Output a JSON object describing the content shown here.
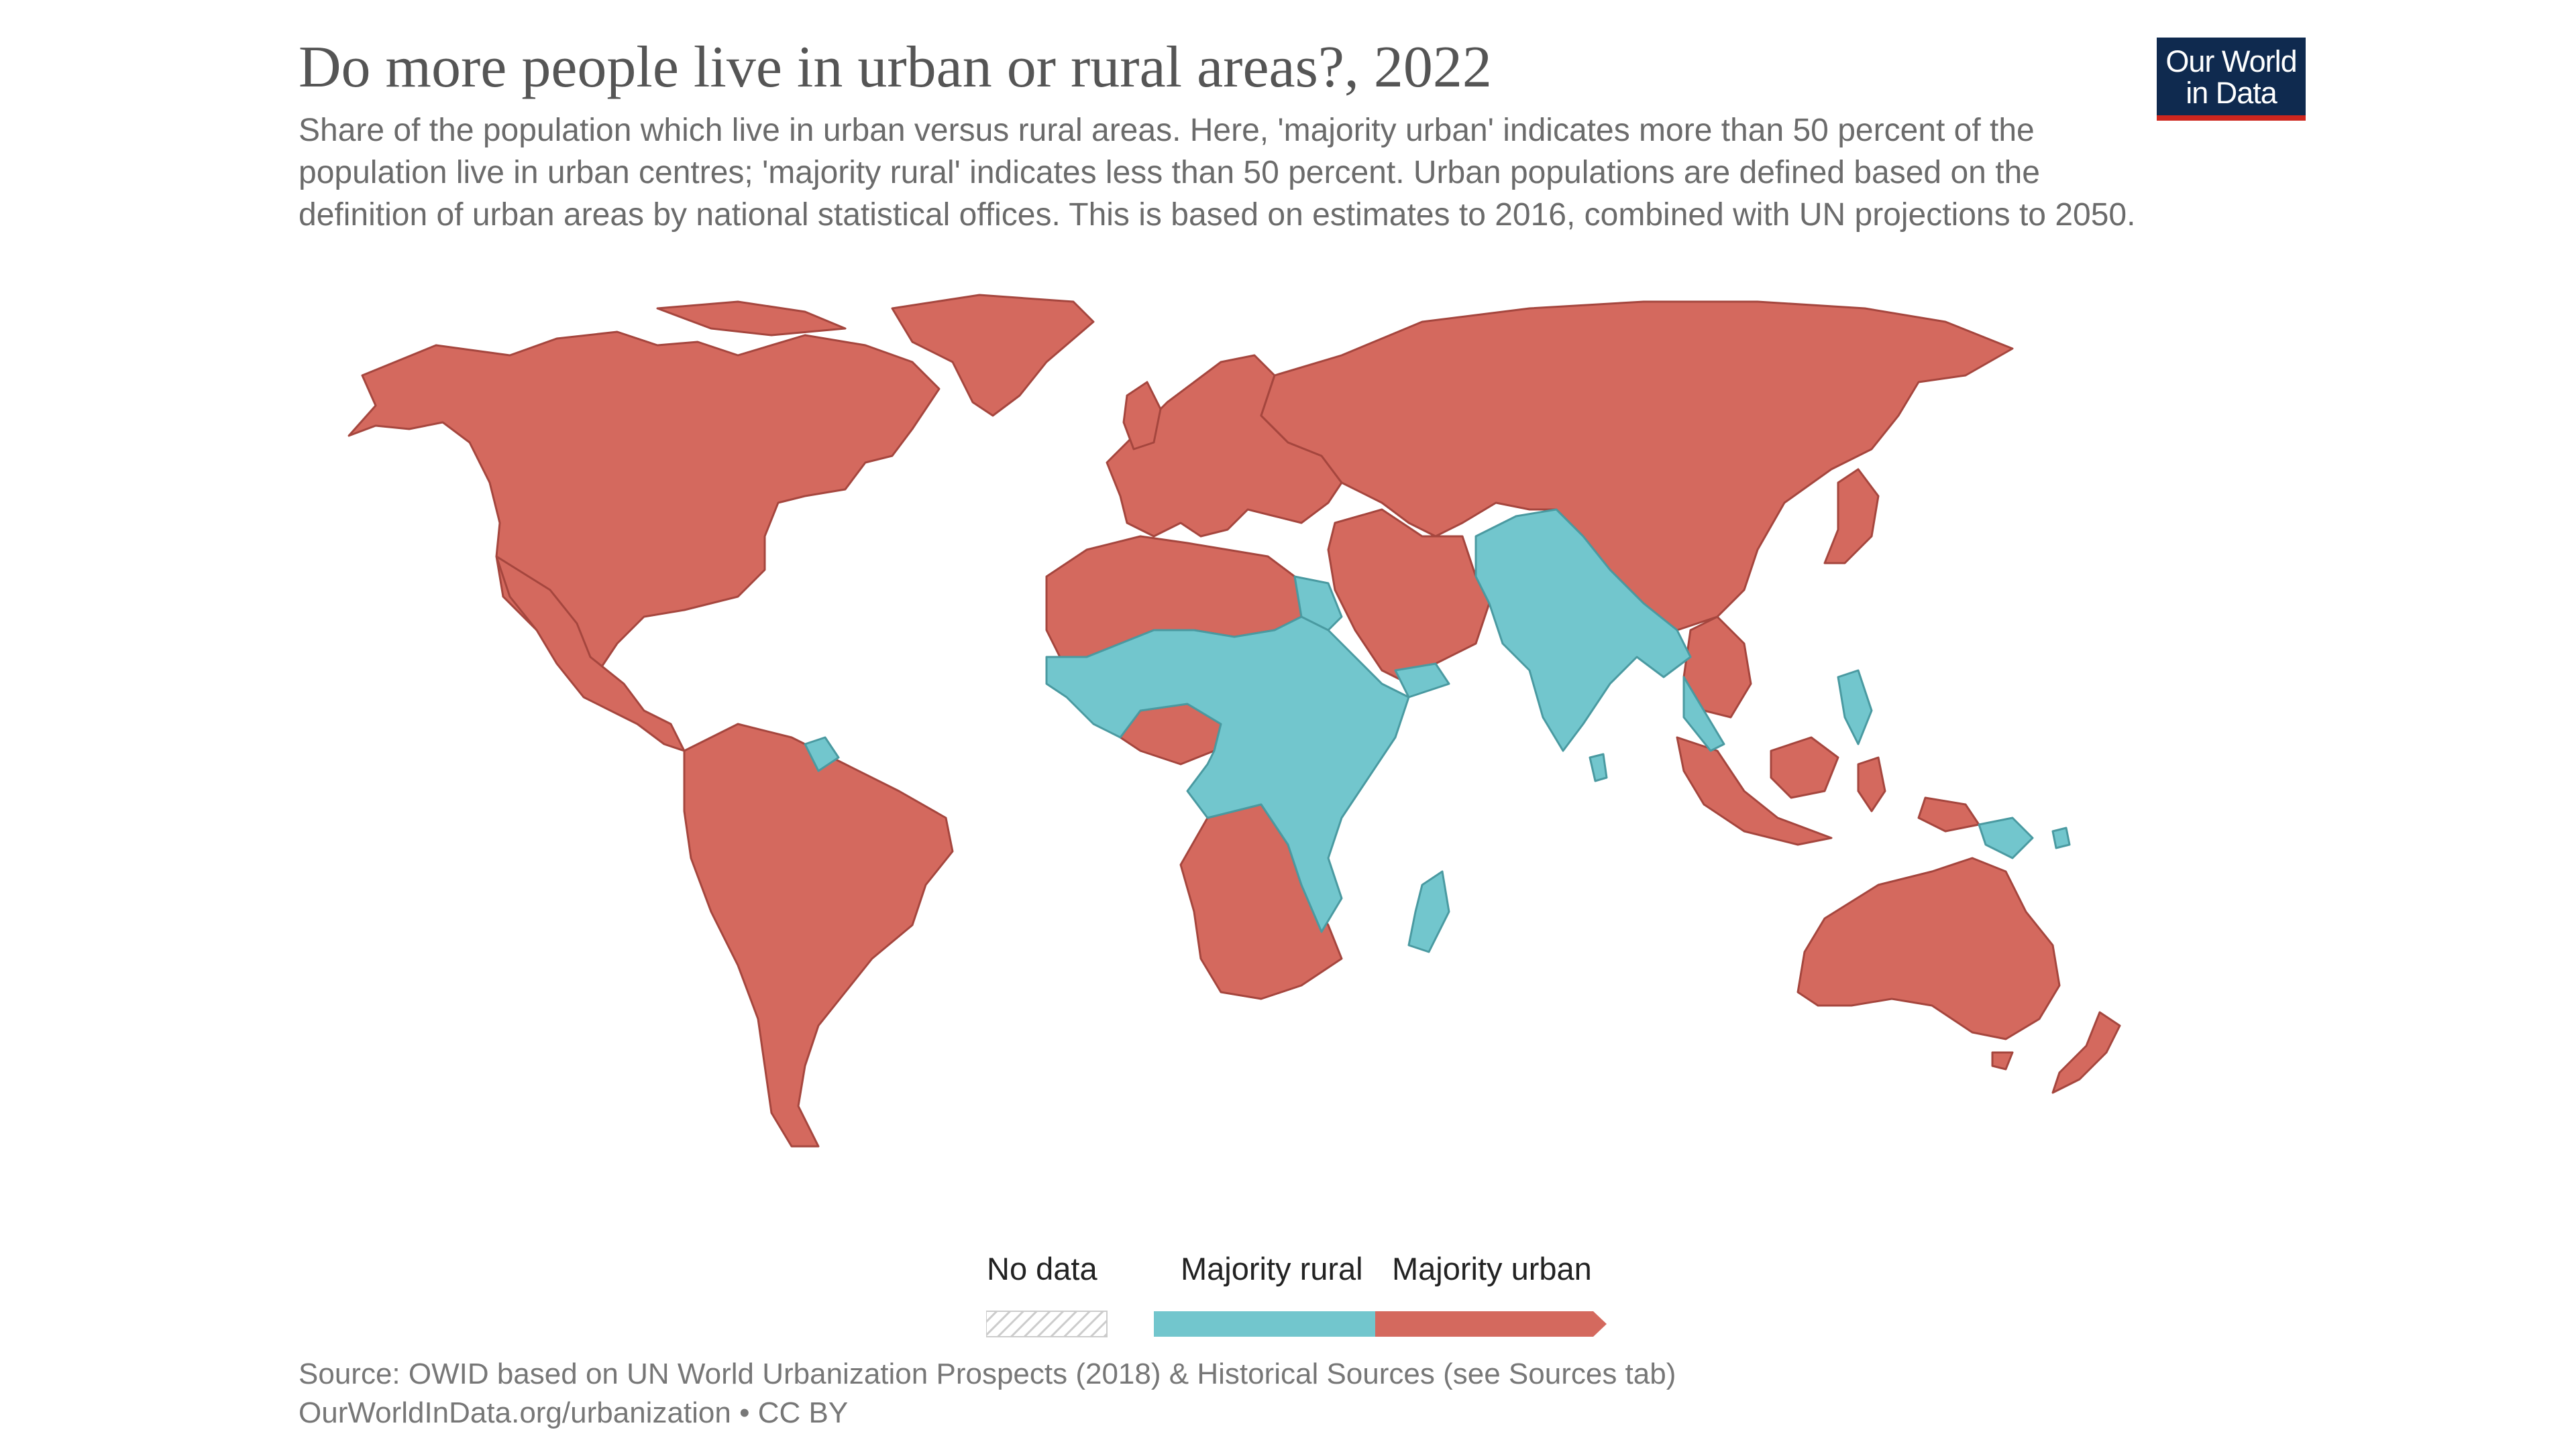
{
  "logo": {
    "line1": "Our World",
    "line2": "in Data"
  },
  "title": "Do more people live in urban or rural areas?, 2022",
  "subtitle": "Share of the population which live in urban versus rural areas. Here, 'majority urban' indicates more than 50 percent of the population live in urban centres; 'majority rural' indicates less than 50 percent. Urban populations are defined based on the definition of urban areas by national statistical offices. This is based on estimates to 2016, combined with UN projections to 2050.",
  "legend": {
    "no_data": "No data",
    "majority_rural": "Majority rural",
    "majority_urban": "Majority urban"
  },
  "colors": {
    "majority_urban": "#d4695e",
    "majority_rural": "#72c6cd",
    "no_data_stripe": "#cccccc"
  },
  "map_regions": {
    "majority_urban": [
      "North America",
      "Central America",
      "South America",
      "Europe",
      "Russia",
      "Middle East",
      "North Africa",
      "China",
      "Southeast Asia (islands)",
      "Australia",
      "New Zealand",
      "Southern Africa",
      "Angola",
      "Gabon",
      "Ghana",
      "Nigeria"
    ],
    "majority_rural": [
      "India",
      "Pakistan",
      "Afghanistan",
      "Egypt",
      "Sahel",
      "East Africa",
      "Ethiopia",
      "Sudan",
      "Madagascar",
      "Papua New Guinea",
      "Guyana",
      "Myanmar",
      "Sri Lanka",
      "Yemen"
    ]
  },
  "footer": {
    "source": "Source: OWID based on UN World Urbanization Prospects (2018) & Historical Sources (see Sources tab)",
    "link": "OurWorldInData.org/urbanization • CC BY"
  }
}
